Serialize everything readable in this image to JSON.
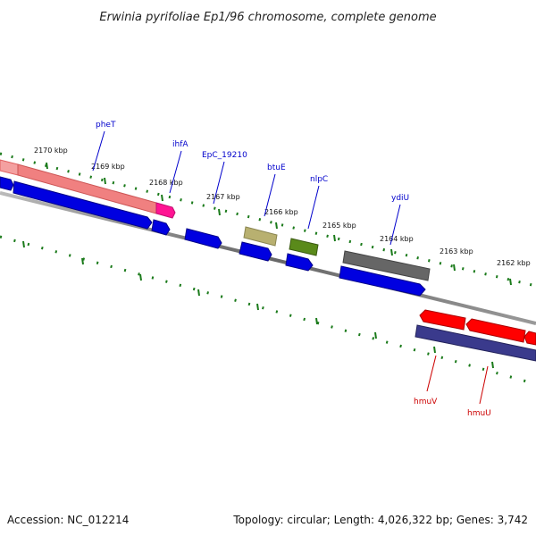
{
  "title": "Erwinia pyrifoliae Ep1/96 chromosome, complete genome",
  "footer": {
    "accession": "Accession: NC_012214",
    "summary": "Topology: circular; Length: 4,026,322 bp; Genes: 3,742"
  },
  "ticks": [
    "2170 kbp",
    "2169 kbp",
    "2168 kbp",
    "2167 kbp",
    "2166 kbp",
    "2165 kbp",
    "2164 kbp",
    "2163 kbp",
    "2162 kbp"
  ],
  "colors": {
    "forward_strand_label": "#0000cc",
    "reverse_strand_label": "#cc0000",
    "backbone": "#777777",
    "tick": "#1a7a1a",
    "cds_blue": "#0000e0",
    "cds_red": "#ff0000",
    "cds_pink": "#f08080",
    "cds_magenta": "#ff1493",
    "cds_olive": "#b8b070",
    "cds_green": "#5a8a1a",
    "cds_gray": "#666666",
    "cds_navy": "#3a3a8c"
  },
  "genes": [
    {
      "name": "pheT",
      "strand": "forward"
    },
    {
      "name": "ihfA",
      "strand": "forward"
    },
    {
      "name": "EpC_19210",
      "strand": "forward"
    },
    {
      "name": "btuE",
      "strand": "forward"
    },
    {
      "name": "nlpC",
      "strand": "forward"
    },
    {
      "name": "ydiU",
      "strand": "forward"
    },
    {
      "name": "hmuV",
      "strand": "reverse"
    },
    {
      "name": "hmuU",
      "strand": "reverse"
    }
  ]
}
